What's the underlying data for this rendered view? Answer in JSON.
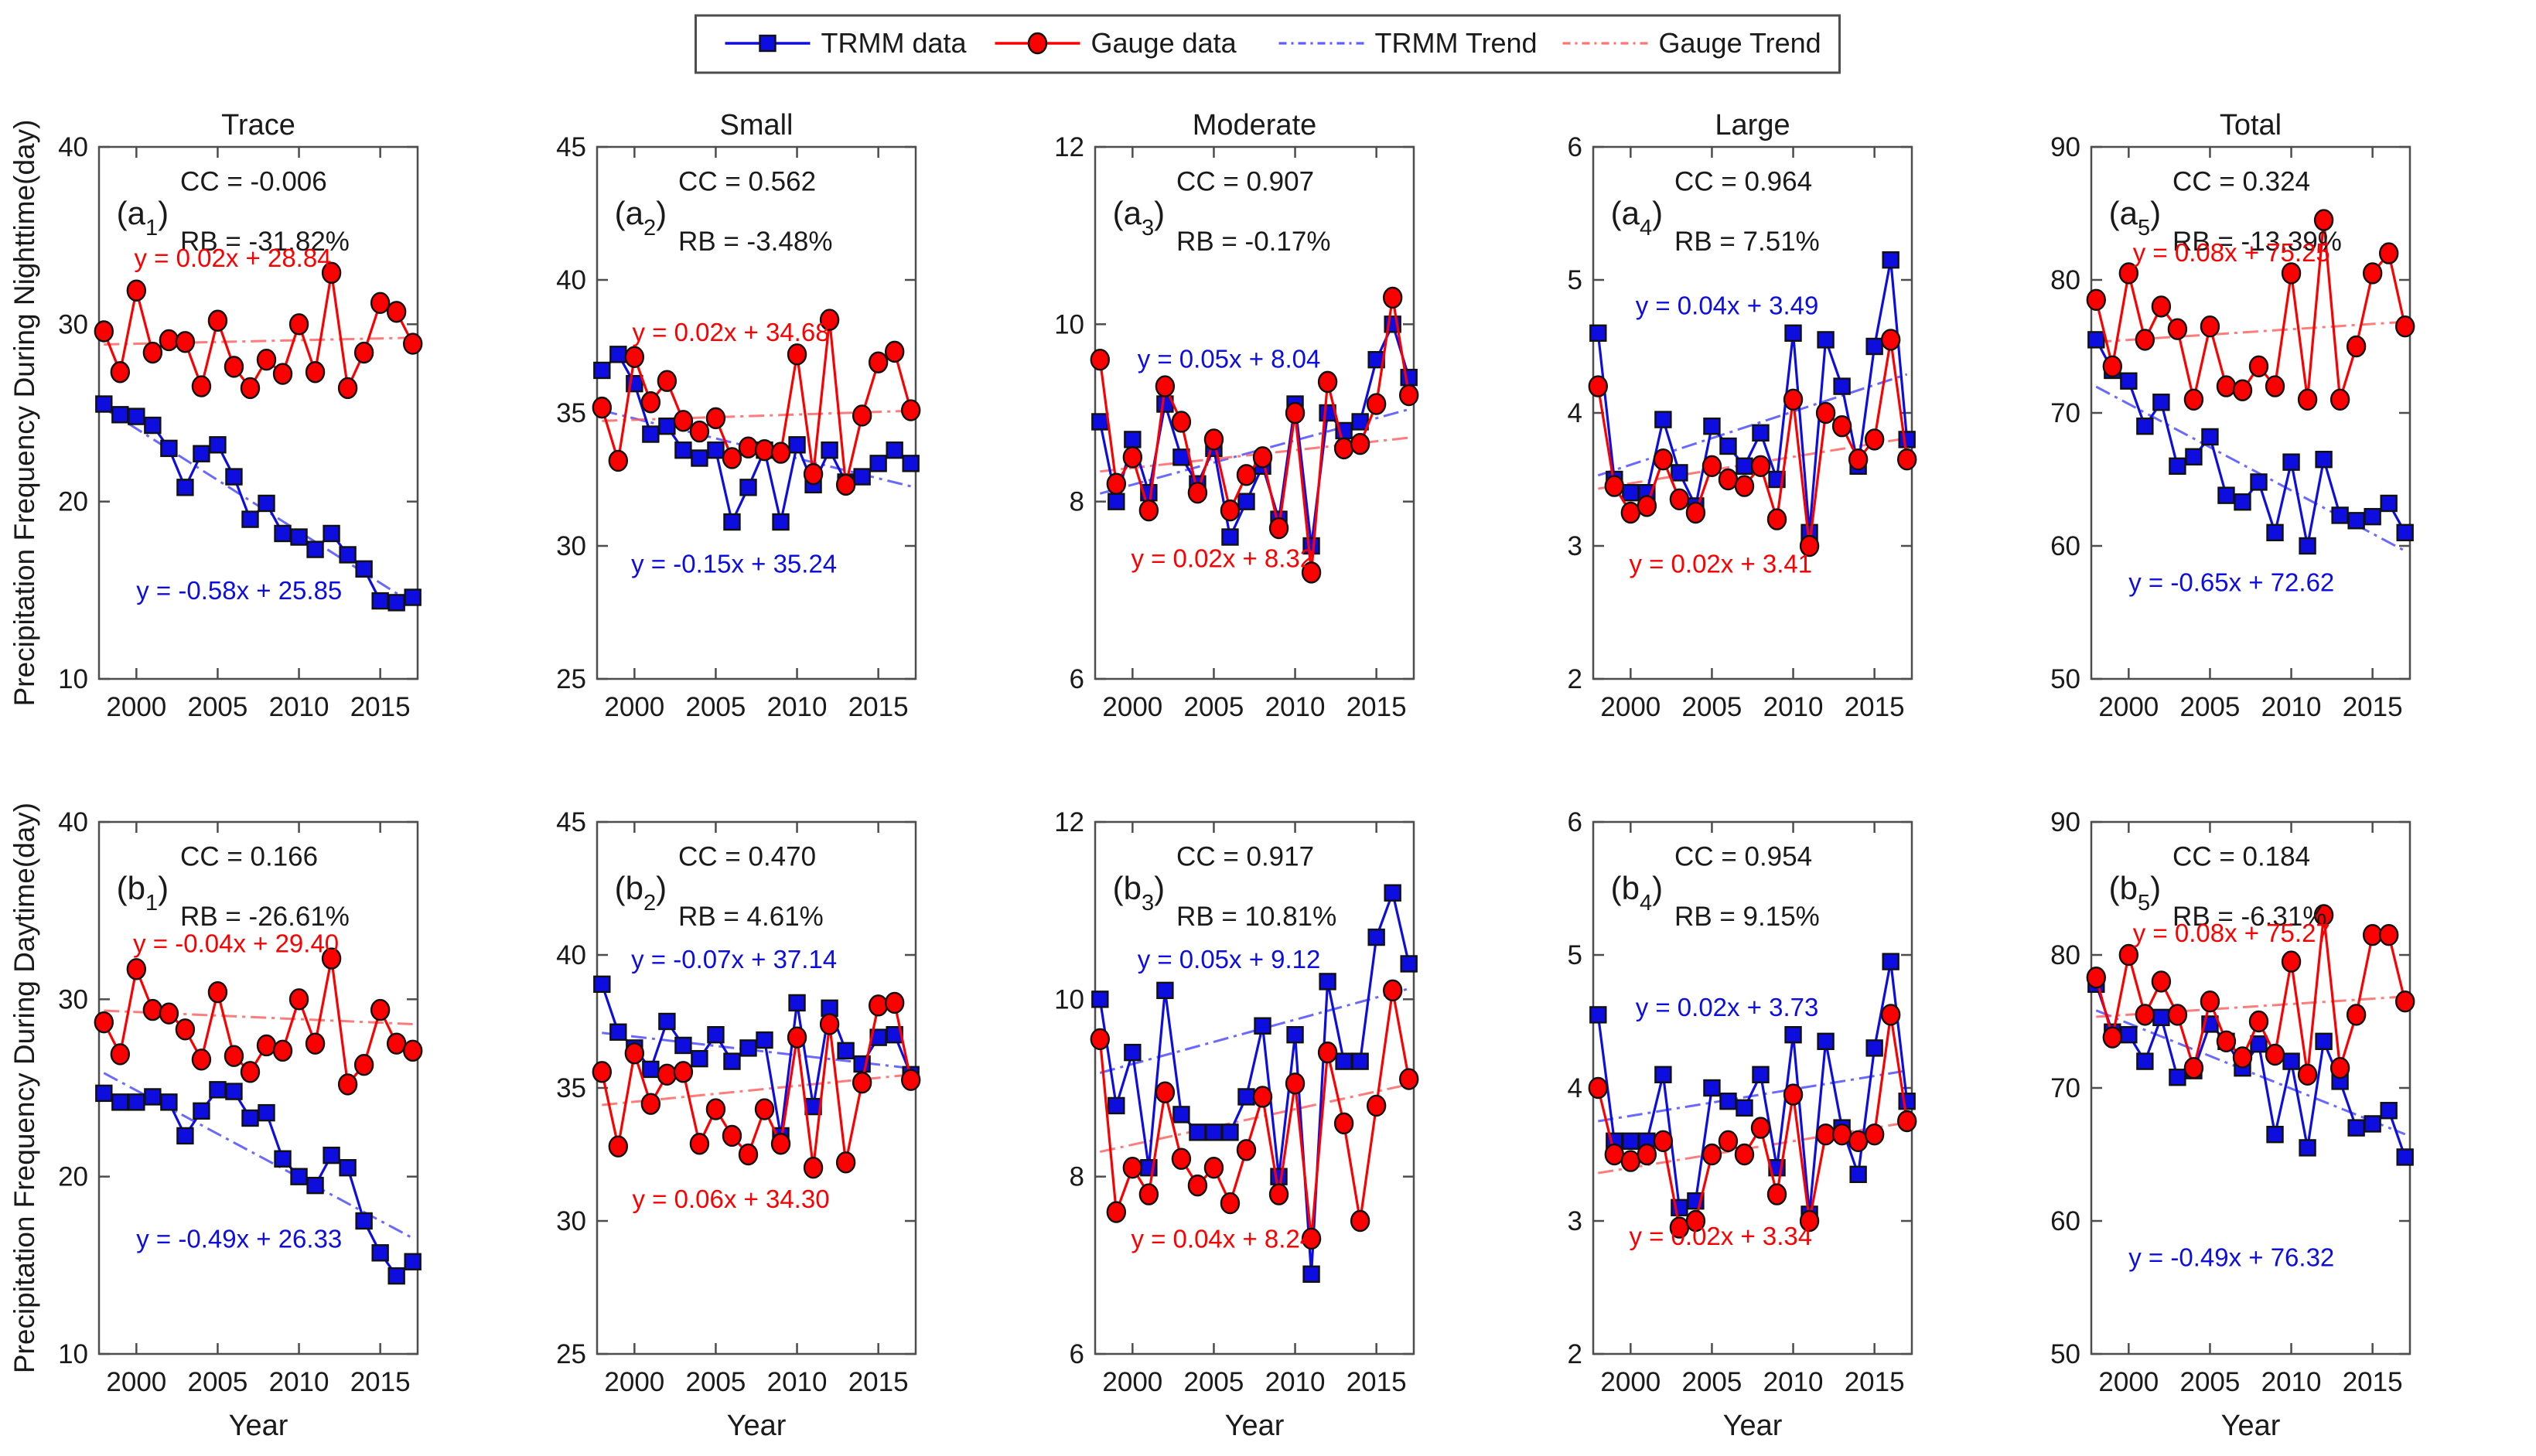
{
  "figure": {
    "background": "#ffffff",
    "colors": {
      "trmm": "#0d0de0",
      "gauge": "#fb0000",
      "trmm_trend": "#4444ff",
      "gauge_trend": "#ff5c5c",
      "axis": "#4d4d4d",
      "text": "#1a1a1a"
    },
    "legend": {
      "items": [
        {
          "label": "TRMM data",
          "style": "solid-square",
          "color_key": "trmm"
        },
        {
          "label": "Gauge data",
          "style": "solid-circle",
          "color_key": "gauge"
        },
        {
          "label": "TRMM Trend",
          "style": "dashdot",
          "color_key": "trmm_trend"
        },
        {
          "label": "Gauge Trend",
          "style": "dashdot",
          "color_key": "gauge_trend"
        }
      ]
    }
  },
  "chart_data": {
    "type": "line",
    "x_label": "Year",
    "x_years": [
      1998,
      1999,
      2000,
      2001,
      2002,
      2003,
      2004,
      2005,
      2006,
      2007,
      2008,
      2009,
      2010,
      2011,
      2012,
      2013,
      2014,
      2015,
      2016,
      2017
    ],
    "x_ticks": [
      2000,
      2005,
      2010,
      2015
    ],
    "x_range": [
      1997.7,
      2017.3
    ],
    "grid": false,
    "legend_position": "top-center",
    "row_labels": [
      "Precipitation Frequency During Nighttime(day)",
      "Precipitation Frequency During Daytime(day)"
    ],
    "col_titles": [
      "Trace",
      "Small",
      "Moderate",
      "Large",
      "Total"
    ],
    "series_names": [
      "TRMM data",
      "Gauge data"
    ],
    "panels": [
      {
        "id": "a1",
        "row": 0,
        "col": 0,
        "title": "Trace",
        "label_prefix": "(a",
        "label_sub": "1",
        "label_suffix": ")",
        "cc": "CC = -0.006",
        "rb": "RB = -31.82%",
        "ylim": [
          10,
          40
        ],
        "yticks": [
          10,
          20,
          30,
          40
        ],
        "trmm": [
          25.5,
          24.9,
          24.8,
          24.3,
          23.0,
          20.8,
          22.7,
          23.2,
          21.4,
          19.0,
          19.9,
          18.2,
          18.0,
          17.3,
          18.2,
          17.0,
          16.2,
          14.4,
          14.3,
          14.6
        ],
        "gauge": [
          29.6,
          27.3,
          31.9,
          28.4,
          29.1,
          29.0,
          26.5,
          30.2,
          27.6,
          26.4,
          28.0,
          27.2,
          30.0,
          27.3,
          32.9,
          26.4,
          28.4,
          31.2,
          30.7,
          28.9
        ],
        "trend_trmm": {
          "slope": -0.58,
          "intercept": 25.85,
          "equation": "y = -0.58x + 25.85",
          "eq_pos": [
            0.44,
            0.85
          ]
        },
        "trend_gauge": {
          "slope": 0.02,
          "intercept": 28.84,
          "equation": "y = 0.02x + 28.84",
          "eq_pos": [
            0.42,
            0.225
          ]
        }
      },
      {
        "id": "a2",
        "row": 0,
        "col": 1,
        "title": "Small",
        "label_prefix": "(a",
        "label_sub": "2",
        "label_suffix": ")",
        "cc": "CC = 0.562",
        "rb": "RB = -3.48%",
        "ylim": [
          25,
          45
        ],
        "yticks": [
          25,
          30,
          35,
          40,
          45
        ],
        "trmm": [
          36.6,
          37.2,
          36.1,
          34.2,
          34.5,
          33.6,
          33.3,
          33.6,
          30.9,
          32.2,
          33.6,
          30.9,
          33.8,
          32.3,
          33.6,
          32.4,
          32.6,
          33.1,
          33.6,
          33.1
        ],
        "gauge": [
          35.2,
          33.2,
          37.1,
          35.4,
          36.2,
          34.7,
          34.3,
          34.8,
          33.3,
          33.7,
          33.6,
          33.5,
          37.2,
          32.7,
          38.5,
          32.3,
          34.9,
          36.9,
          37.3,
          35.1
        ],
        "trend_trmm": {
          "slope": -0.15,
          "intercept": 35.24,
          "equation": "y = -0.15x + 35.24",
          "eq_pos": [
            0.43,
            0.8
          ]
        },
        "trend_gauge": {
          "slope": 0.02,
          "intercept": 34.68,
          "equation": "y = 0.02x + 34.68",
          "eq_pos": [
            0.42,
            0.365
          ]
        }
      },
      {
        "id": "a3",
        "row": 0,
        "col": 2,
        "title": "Moderate",
        "label_prefix": "(a",
        "label_sub": "3",
        "label_suffix": ")",
        "cc": "CC = 0.907",
        "rb": "RB = -0.17%",
        "ylim": [
          6,
          12
        ],
        "yticks": [
          6,
          8,
          10,
          12
        ],
        "trmm": [
          8.9,
          8.0,
          8.7,
          8.1,
          9.1,
          8.5,
          8.2,
          8.6,
          7.6,
          8.0,
          8.4,
          7.8,
          9.1,
          7.5,
          9.0,
          8.8,
          8.9,
          9.6,
          10.0,
          9.4
        ],
        "gauge": [
          9.6,
          8.2,
          8.5,
          7.9,
          9.3,
          8.9,
          8.1,
          8.7,
          7.9,
          8.3,
          8.5,
          7.7,
          9.0,
          7.2,
          9.35,
          8.6,
          8.65,
          9.1,
          10.3,
          9.2
        ],
        "trend_trmm": {
          "slope": 0.05,
          "intercept": 8.04,
          "equation": "y = 0.05x + 8.04",
          "eq_pos": [
            0.42,
            0.415
          ]
        },
        "trend_gauge": {
          "slope": 0.02,
          "intercept": 8.32,
          "equation": "y = 0.02x + 8.32",
          "eq_pos": [
            0.4,
            0.79
          ]
        }
      },
      {
        "id": "a4",
        "row": 0,
        "col": 3,
        "title": "Large",
        "label_prefix": "(a",
        "label_sub": "4",
        "label_suffix": ")",
        "cc": "CC = 0.964",
        "rb": "RB = 7.51%",
        "ylim": [
          2,
          6
        ],
        "yticks": [
          2,
          3,
          4,
          5,
          6
        ],
        "trmm": [
          4.6,
          3.5,
          3.4,
          3.4,
          3.95,
          3.55,
          3.3,
          3.9,
          3.75,
          3.6,
          3.85,
          3.5,
          4.6,
          3.1,
          4.55,
          4.2,
          3.6,
          4.5,
          5.15,
          3.8
        ],
        "gauge": [
          4.2,
          3.45,
          3.25,
          3.3,
          3.65,
          3.35,
          3.25,
          3.6,
          3.5,
          3.45,
          3.6,
          3.2,
          4.1,
          3.0,
          4.0,
          3.9,
          3.65,
          3.8,
          4.55,
          3.65
        ],
        "trend_trmm": {
          "slope": 0.04,
          "intercept": 3.49,
          "equation": "y = 0.04x + 3.49",
          "eq_pos": [
            0.42,
            0.315
          ]
        },
        "trend_gauge": {
          "slope": 0.02,
          "intercept": 3.41,
          "equation": "y = 0.02x + 3.41",
          "eq_pos": [
            0.4,
            0.8
          ]
        }
      },
      {
        "id": "a5",
        "row": 0,
        "col": 4,
        "title": "Total",
        "label_prefix": "(a",
        "label_sub": "5",
        "label_suffix": ")",
        "cc": "CC = 0.324",
        "rb": "RB = -13.39%",
        "ylim": [
          50,
          90
        ],
        "yticks": [
          50,
          60,
          70,
          80,
          90
        ],
        "trmm": [
          75.5,
          73.2,
          72.4,
          69.0,
          70.8,
          66.0,
          66.7,
          68.2,
          63.8,
          63.3,
          64.8,
          61.0,
          66.3,
          60.0,
          66.5,
          62.3,
          61.9,
          62.2,
          63.2,
          61.0
        ],
        "gauge": [
          78.5,
          73.5,
          80.5,
          75.5,
          78.0,
          76.3,
          71.0,
          76.5,
          72.0,
          71.7,
          73.5,
          72.0,
          80.5,
          71.0,
          84.5,
          71.0,
          75.0,
          80.5,
          82.0,
          76.5
        ],
        "trend_trmm": {
          "slope": -0.65,
          "intercept": 72.62,
          "equation": "y = -0.65x + 72.62",
          "eq_pos": [
            0.44,
            0.835
          ]
        },
        "trend_gauge": {
          "slope": 0.08,
          "intercept": 75.25,
          "equation": "y = 0.08x + 75.25",
          "eq_pos": [
            0.44,
            0.215
          ]
        }
      },
      {
        "id": "b1",
        "row": 1,
        "col": 0,
        "title": "",
        "label_prefix": "(b",
        "label_sub": "1",
        "label_suffix": ")",
        "cc": "CC = 0.166",
        "rb": "RB = -26.61%",
        "ylim": [
          10,
          40
        ],
        "yticks": [
          10,
          20,
          30,
          40
        ],
        "trmm": [
          24.7,
          24.2,
          24.2,
          24.5,
          24.2,
          22.3,
          23.7,
          24.9,
          24.8,
          23.3,
          23.6,
          21.0,
          20.0,
          19.5,
          21.2,
          20.5,
          17.5,
          15.7,
          14.4,
          15.2
        ],
        "gauge": [
          28.7,
          26.9,
          31.7,
          29.4,
          29.2,
          28.3,
          26.6,
          30.4,
          26.8,
          25.9,
          27.4,
          27.1,
          30.0,
          27.5,
          32.3,
          25.2,
          26.3,
          29.4,
          27.5,
          27.1
        ],
        "trend_trmm": {
          "slope": -0.49,
          "intercept": 26.33,
          "equation": "y = -0.49x + 26.33",
          "eq_pos": [
            0.44,
            0.8
          ]
        },
        "trend_gauge": {
          "slope": -0.04,
          "intercept": 29.4,
          "equation": "y = -0.04x + 29.40",
          "eq_pos": [
            0.43,
            0.245
          ]
        }
      },
      {
        "id": "b2",
        "row": 1,
        "col": 1,
        "title": "",
        "label_prefix": "(b",
        "label_sub": "2",
        "label_suffix": ")",
        "cc": "CC = 0.470",
        "rb": "RB = 4.61%",
        "ylim": [
          25,
          45
        ],
        "yticks": [
          25,
          30,
          35,
          40,
          45
        ],
        "trmm": [
          38.9,
          37.1,
          36.5,
          35.7,
          37.5,
          36.6,
          36.1,
          37.0,
          36.0,
          36.5,
          36.8,
          33.2,
          38.2,
          34.3,
          38.0,
          36.4,
          35.9,
          36.9,
          37.0,
          35.5
        ],
        "gauge": [
          35.6,
          32.8,
          36.3,
          34.4,
          35.5,
          35.6,
          32.9,
          34.2,
          33.2,
          32.5,
          34.2,
          32.9,
          36.9,
          32.0,
          37.4,
          32.2,
          35.2,
          38.1,
          38.2,
          35.3
        ],
        "trend_trmm": {
          "slope": -0.07,
          "intercept": 37.14,
          "equation": "y = -0.07x + 37.14",
          "eq_pos": [
            0.43,
            0.275
          ]
        },
        "trend_gauge": {
          "slope": 0.06,
          "intercept": 34.3,
          "equation": "y = 0.06x + 34.30",
          "eq_pos": [
            0.42,
            0.725
          ]
        }
      },
      {
        "id": "b3",
        "row": 1,
        "col": 2,
        "title": "",
        "label_prefix": "(b",
        "label_sub": "3",
        "label_suffix": ")",
        "cc": "CC = 0.917",
        "rb": "RB = 10.81%",
        "ylim": [
          6,
          12
        ],
        "yticks": [
          6,
          8,
          10,
          12
        ],
        "trmm": [
          10.0,
          8.8,
          9.4,
          8.1,
          10.1,
          8.7,
          8.5,
          8.5,
          8.5,
          8.9,
          9.7,
          8.0,
          9.6,
          6.9,
          10.2,
          9.3,
          9.3,
          10.7,
          11.2,
          10.4
        ],
        "gauge": [
          9.55,
          7.6,
          8.1,
          7.8,
          8.95,
          8.2,
          7.9,
          8.1,
          7.7,
          8.3,
          8.9,
          7.8,
          9.05,
          7.3,
          9.4,
          8.6,
          7.5,
          8.8,
          10.1,
          9.1
        ],
        "trend_trmm": {
          "slope": 0.05,
          "intercept": 9.12,
          "equation": "y = 0.05x + 9.12",
          "eq_pos": [
            0.42,
            0.275
          ]
        },
        "trend_gauge": {
          "slope": 0.04,
          "intercept": 8.24,
          "equation": "y = 0.04x + 8.24",
          "eq_pos": [
            0.4,
            0.8
          ]
        }
      },
      {
        "id": "b4",
        "row": 1,
        "col": 3,
        "title": "",
        "label_prefix": "(b",
        "label_sub": "4",
        "label_suffix": ")",
        "cc": "CC = 0.954",
        "rb": "RB = 9.15%",
        "ylim": [
          2,
          6
        ],
        "yticks": [
          2,
          3,
          4,
          5,
          6
        ],
        "trmm": [
          4.55,
          3.6,
          3.6,
          3.6,
          4.1,
          3.1,
          3.15,
          4.0,
          3.9,
          3.85,
          4.1,
          3.4,
          4.4,
          3.05,
          4.35,
          3.7,
          3.35,
          4.3,
          4.95,
          3.9
        ],
        "gauge": [
          4.0,
          3.5,
          3.45,
          3.5,
          3.6,
          2.95,
          3.0,
          3.5,
          3.6,
          3.5,
          3.7,
          3.2,
          3.95,
          3.0,
          3.65,
          3.65,
          3.6,
          3.65,
          4.55,
          3.75
        ],
        "trend_trmm": {
          "slope": 0.02,
          "intercept": 3.73,
          "equation": "y = 0.02x + 3.73",
          "eq_pos": [
            0.42,
            0.365
          ]
        },
        "trend_gauge": {
          "slope": 0.02,
          "intercept": 3.34,
          "equation": "y = 0.02x + 3.34",
          "eq_pos": [
            0.4,
            0.795
          ]
        }
      },
      {
        "id": "b5",
        "row": 1,
        "col": 4,
        "title": "",
        "label_prefix": "(b",
        "label_sub": "5",
        "label_suffix": ")",
        "cc": "CC = 0.184",
        "rb": "RB = -6.31%",
        "ylim": [
          50,
          90
        ],
        "yticks": [
          50,
          60,
          70,
          80,
          90
        ],
        "trmm": [
          77.8,
          74.2,
          74.0,
          72.0,
          75.3,
          70.8,
          71.3,
          74.8,
          73.5,
          71.5,
          73.3,
          66.5,
          72.0,
          65.5,
          73.5,
          70.5,
          67.0,
          67.3,
          68.3,
          64.8
        ],
        "gauge": [
          78.3,
          73.8,
          80.0,
          75.5,
          78.0,
          75.5,
          71.5,
          76.5,
          73.5,
          72.3,
          75.0,
          72.5,
          79.5,
          71.0,
          83.0,
          71.5,
          75.5,
          81.5,
          81.5,
          76.5
        ],
        "trend_trmm": {
          "slope": -0.49,
          "intercept": 76.32,
          "equation": "y = -0.49x + 76.32",
          "eq_pos": [
            0.44,
            0.835
          ]
        },
        "trend_gauge": {
          "slope": 0.08,
          "intercept": 75.27,
          "equation": "y = 0.08x + 75.27",
          "eq_pos": [
            0.44,
            0.225
          ]
        }
      }
    ]
  }
}
